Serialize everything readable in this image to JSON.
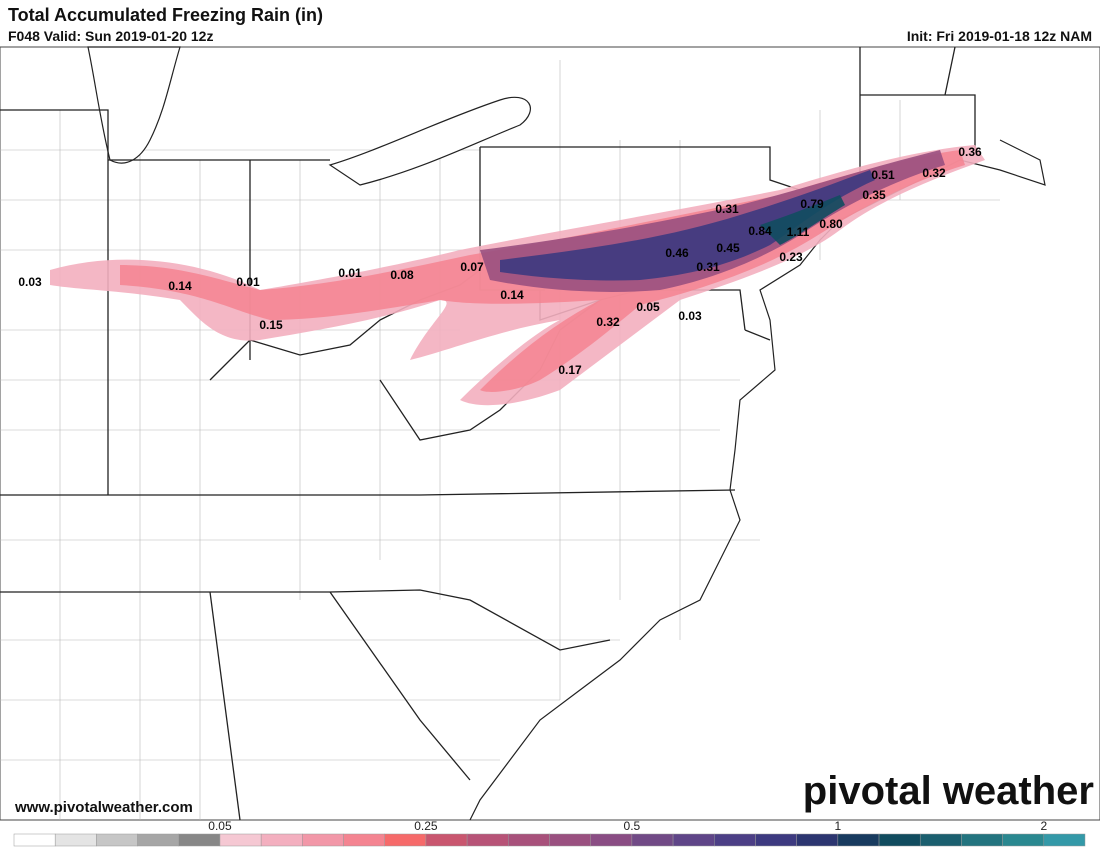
{
  "header": {
    "title": "Total Accumulated Freezing Rain (in)",
    "valid": "F048 Valid: Sun 2019-01-20 12z",
    "init": "Init: Fri 2019-01-18 12z NAM"
  },
  "labels": [
    "0.03",
    "0.14",
    "0.01",
    "0.01",
    "0.08",
    "0.07",
    "0.15",
    "0.14",
    "0.32",
    "0.05",
    "0.03",
    "0.17",
    "0.46",
    "0.45",
    "0.31",
    "0.31",
    "0.84",
    "1.11",
    "0.23",
    "0.80",
    "0.79",
    "0.35",
    "0.51",
    "0.32",
    "0.36"
  ],
  "footer": {
    "website": "www.pivotalweather.com",
    "logo": "pivotal weather"
  },
  "colorbar": {
    "colors": [
      "#ffffff",
      "#e4e4e4",
      "#c6c6c6",
      "#a6a6a6",
      "#878787",
      "#f5c8d3",
      "#f3afbf",
      "#f297a8",
      "#f48491",
      "#f66a6a",
      "#c9566f",
      "#b75377",
      "#a8517b",
      "#9a5080",
      "#8a4d84",
      "#714a86",
      "#5f4588",
      "#4c3f86",
      "#3d3a80",
      "#2c3570",
      "#183b5f",
      "#114c5f",
      "#1b5f6f",
      "#23747f",
      "#2a8890",
      "#3399a8"
    ],
    "ticks": [
      "0.05",
      "0.25",
      "0.5",
      "1",
      "2"
    ]
  }
}
